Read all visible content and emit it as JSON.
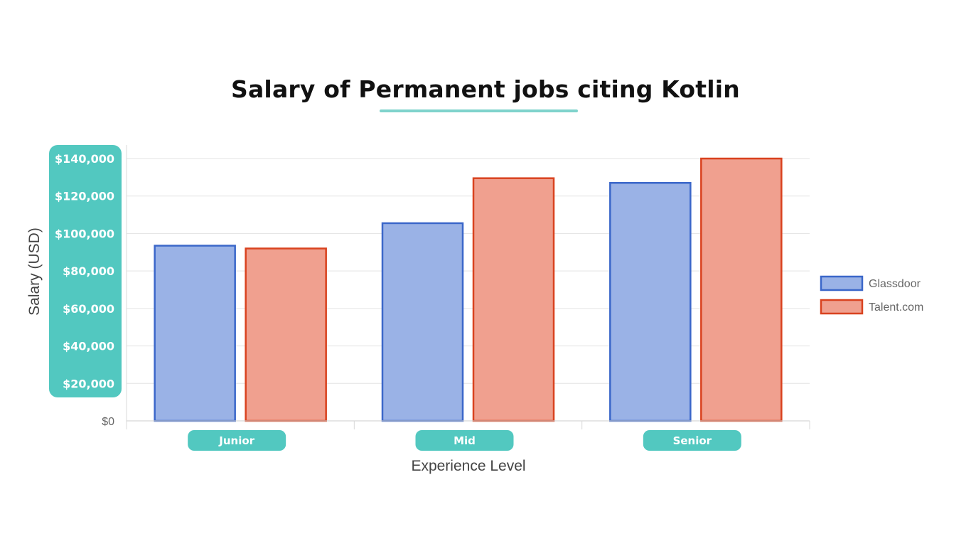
{
  "chart_data": {
    "type": "bar",
    "title": "Salary of Permanent jobs citing Kotlin",
    "xlabel": "Experience Level",
    "ylabel": "Salary (USD)",
    "categories": [
      "Junior",
      "Mid",
      "Senior"
    ],
    "series": [
      {
        "name": "Glassdoor",
        "values": [
          93500,
          105500,
          127000
        ],
        "fill": "#9ab2e6",
        "stroke": "#3b67c9"
      },
      {
        "name": "Talent.com",
        "values": [
          92000,
          129500,
          140000
        ],
        "fill": "#f0a08f",
        "stroke": "#d9421f"
      }
    ],
    "ylim": [
      0,
      140000
    ],
    "yticks": [
      0,
      20000,
      40000,
      60000,
      80000,
      100000,
      120000,
      140000
    ],
    "ytick_labels": [
      "$0",
      "$20,000",
      "$40,000",
      "$60,000",
      "$80,000",
      "$100,000",
      "$120,000",
      "$140,000"
    ],
    "grid": true,
    "legend_position": "right",
    "accent_color": "#52c8c0"
  }
}
